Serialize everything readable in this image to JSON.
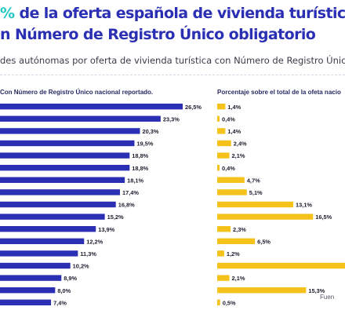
{
  "title": {
    "accent": "%",
    "line1": "de la oferta española de vivienda turístic",
    "line2": "n Número de Registro Único obligatorio"
  },
  "subtitle": "des autónomas por oferta de vivienda turística con Número de Registro Único",
  "source": "Fuen",
  "colors": {
    "left_bar": "#2a2fb3",
    "right_bar": "#f4c21b",
    "title": "#2a2fb3",
    "accent": "#21c7c2"
  },
  "chart_data": [
    {
      "type": "bar",
      "orientation": "horizontal",
      "title": "Con Número de Registro Único nacional reportado.",
      "value_suffix": "%",
      "values": [
        26.5,
        23.3,
        20.3,
        19.5,
        18.8,
        18.8,
        18.1,
        17.4,
        16.8,
        15.2,
        13.9,
        12.2,
        11.3,
        10.2,
        8.9,
        8.0,
        7.4
      ],
      "labels": [
        "26,5%",
        "23,3%",
        "20,3%",
        "19,5%",
        "18,8%",
        "18,8%",
        "18,1%",
        "17,4%",
        "16,8%",
        "15,2%",
        "13,9%",
        "12,2%",
        "11,3%",
        "10,2%",
        "8,9%",
        "8,0%",
        "7,4%"
      ],
      "xlim": [
        0,
        26.5
      ]
    },
    {
      "type": "bar",
      "orientation": "horizontal",
      "title": "Porcentaje sobre el total de la ofeta nacio",
      "value_suffix": "%",
      "values": [
        1.4,
        0.4,
        1.4,
        2.4,
        2.1,
        0.4,
        4.7,
        5.1,
        13.1,
        16.5,
        2.3,
        6.5,
        1.2,
        22.0,
        2.1,
        15.3,
        0.5
      ],
      "labels": [
        "1,4%",
        "0,4%",
        "1,4%",
        "2,4%",
        "2,1%",
        "0,4%",
        "4,7%",
        "5,1%",
        "13,1%",
        "16,5%",
        "2,3%",
        "6,5%",
        "1,2%",
        "",
        "2,1%",
        "15,3%",
        "0,5%"
      ],
      "xlim": [
        0,
        22
      ]
    }
  ]
}
